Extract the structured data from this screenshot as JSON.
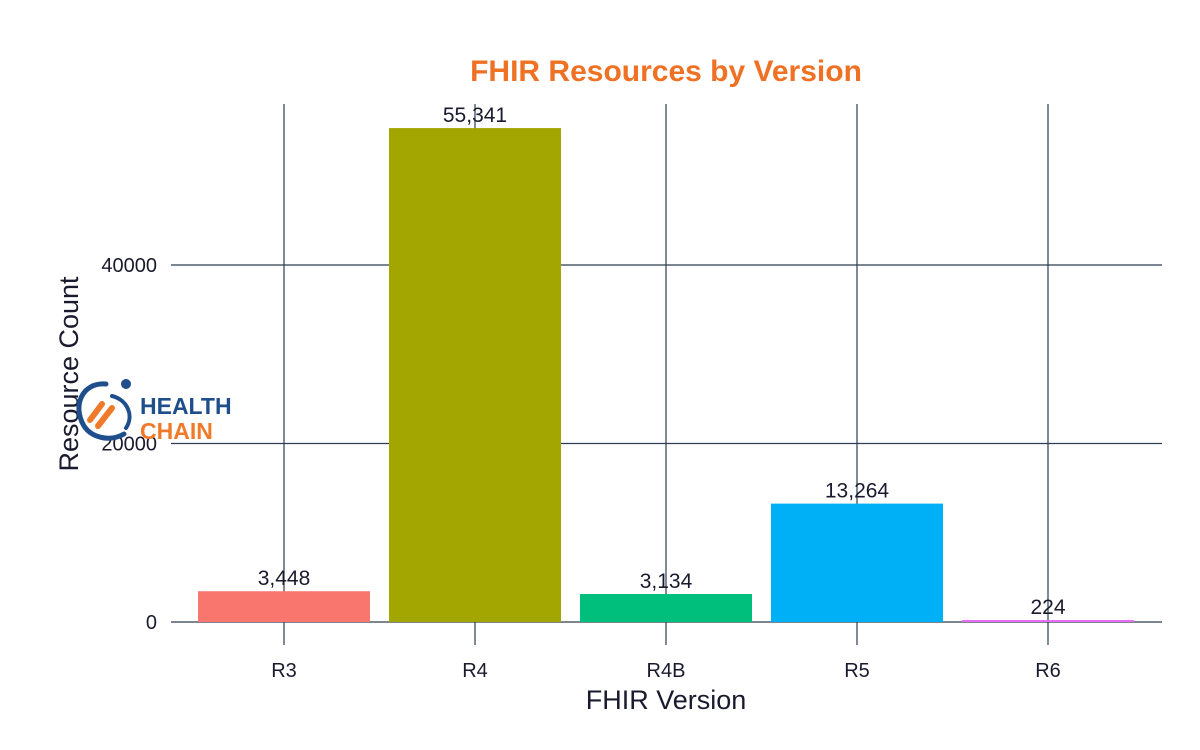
{
  "chart_data": {
    "type": "bar",
    "title": "FHIR Resources by Version",
    "xlabel": "FHIR Version",
    "ylabel": "Resource Count",
    "categories": [
      "R3",
      "R4",
      "R4B",
      "R5",
      "R6"
    ],
    "values": [
      3448,
      55341,
      3134,
      13264,
      224
    ],
    "value_labels": [
      "3,448",
      "55,341",
      "3,134",
      "13,264",
      "224"
    ],
    "colors": [
      "#F8766D",
      "#A3A500",
      "#00BF7D",
      "#00B0F6",
      "#E76BF3"
    ],
    "yticks": [
      0,
      20000,
      40000
    ],
    "ytick_labels": [
      "0",
      "20000",
      "40000"
    ],
    "ylim": [
      0,
      58000
    ],
    "grid": true,
    "legend": "none"
  },
  "logo": {
    "line1": "HEALTH",
    "line2": "CHAIN",
    "primary_color": "#1f4e8c",
    "accent_color": "#ef7b2a"
  },
  "colors": {
    "title": "#ef7124",
    "grid": "#2c3e50",
    "text": "#1a1a2e"
  }
}
